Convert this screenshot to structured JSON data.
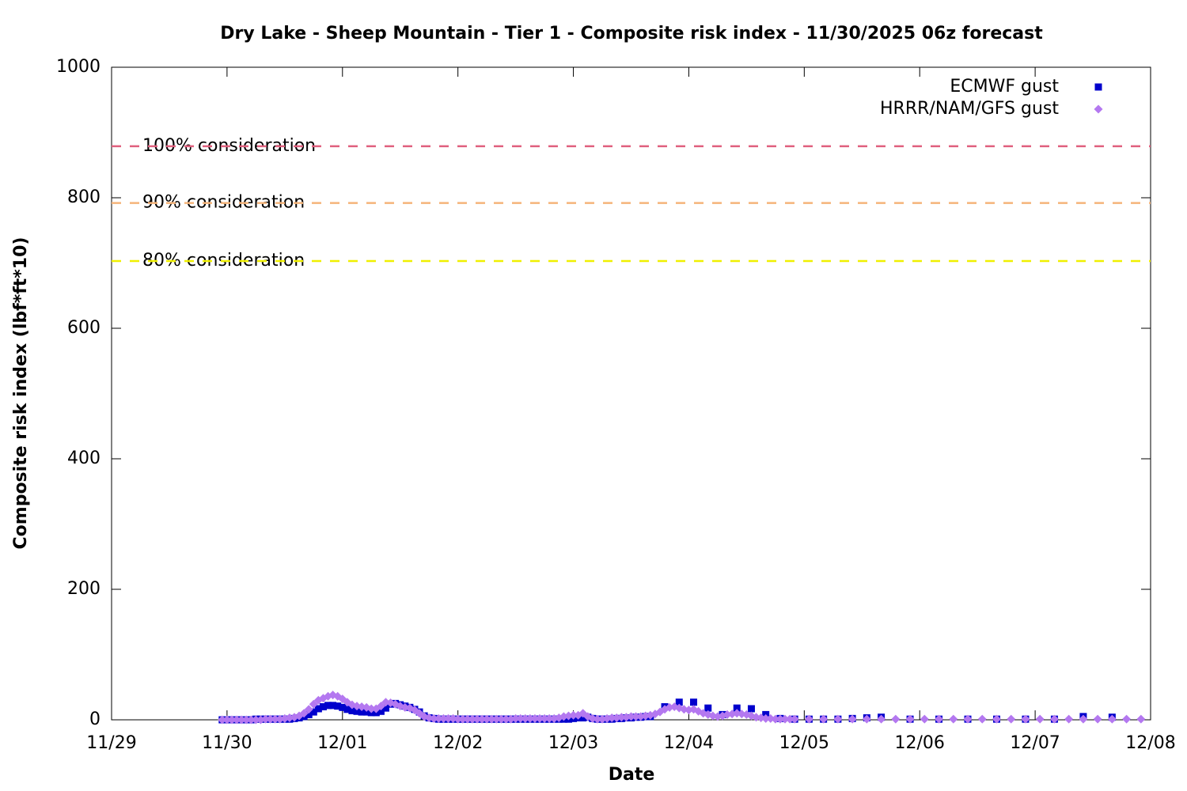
{
  "chart_data": {
    "type": "scatter",
    "title": "Dry Lake - Sheep Mountain - Tier 1 - Composite risk index - 11/30/2025 06z forecast",
    "xlabel": "Date",
    "ylabel": "Composite risk index (lbf*ft*10)",
    "xlim": [
      0,
      216
    ],
    "xticks": [
      {
        "value": 0,
        "label": "11/29"
      },
      {
        "value": 24,
        "label": "11/30"
      },
      {
        "value": 48,
        "label": "12/01"
      },
      {
        "value": 72,
        "label": "12/02"
      },
      {
        "value": 96,
        "label": "12/03"
      },
      {
        "value": 120,
        "label": "12/04"
      },
      {
        "value": 144,
        "label": "12/05"
      },
      {
        "value": 168,
        "label": "12/06"
      },
      {
        "value": 192,
        "label": "12/07"
      },
      {
        "value": 216,
        "label": "12/08"
      }
    ],
    "ylim": [
      0,
      1000
    ],
    "yticks": [
      0,
      200,
      400,
      600,
      800,
      1000
    ],
    "grid": false,
    "legend": "top-right",
    "thresholds": [
      {
        "label": "100% consideration",
        "value": 879,
        "color": "#e0607e"
      },
      {
        "label": "90% consideration",
        "value": 792,
        "color": "#f5b47a"
      },
      {
        "label": "80% consideration",
        "value": 703,
        "color": "#f0f000"
      }
    ],
    "series": [
      {
        "name": "ECMWF gust",
        "color": "#0000cc",
        "marker": "square",
        "x": [
          23,
          24,
          25,
          26,
          27,
          28,
          29,
          30,
          31,
          32,
          33,
          34,
          35,
          36,
          37,
          38,
          39,
          40,
          41,
          42,
          43,
          44,
          45,
          46,
          47,
          48,
          49,
          50,
          51,
          52,
          53,
          54,
          55,
          56,
          57,
          58,
          59,
          60,
          61,
          62,
          63,
          64,
          65,
          66,
          67,
          68,
          69,
          70,
          71,
          72,
          73,
          74,
          75,
          76,
          77,
          78,
          79,
          80,
          81,
          82,
          83,
          84,
          85,
          86,
          87,
          88,
          89,
          90,
          91,
          92,
          93,
          94,
          95,
          96,
          97,
          98,
          99,
          100,
          101,
          102,
          103,
          104,
          105,
          106,
          107,
          108,
          109,
          110,
          111,
          112,
          115,
          118,
          121,
          124,
          127,
          130,
          133,
          136,
          139,
          142,
          145,
          148,
          151,
          154,
          157,
          160,
          166,
          172,
          178,
          184,
          190,
          196,
          202,
          208
        ],
        "values": [
          0,
          0,
          0,
          0,
          0,
          0,
          0,
          1,
          1,
          1,
          1,
          1,
          1,
          1,
          1,
          2,
          3,
          5,
          8,
          12,
          17,
          20,
          22,
          22,
          21,
          19,
          16,
          14,
          13,
          12,
          12,
          11,
          11,
          13,
          18,
          24,
          25,
          23,
          21,
          19,
          16,
          12,
          6,
          3,
          2,
          1,
          1,
          1,
          1,
          1,
          1,
          1,
          1,
          1,
          1,
          1,
          1,
          1,
          1,
          1,
          1,
          1,
          1,
          1,
          1,
          1,
          1,
          1,
          1,
          1,
          1,
          1,
          1,
          2,
          3,
          3,
          4,
          2,
          1,
          1,
          1,
          1,
          2,
          2,
          3,
          3,
          4,
          4,
          5,
          5,
          20,
          27,
          27,
          18,
          8,
          18,
          17,
          8,
          2,
          1,
          1,
          1,
          1,
          2,
          3,
          4,
          1,
          1,
          1,
          1,
          1,
          1,
          5,
          4
        ]
      },
      {
        "name": "HRRR/NAM/GFS gust",
        "color": "#b478f0",
        "marker": "diamond",
        "x": [
          23,
          24,
          25,
          26,
          27,
          28,
          29,
          30,
          31,
          32,
          33,
          34,
          35,
          36,
          37,
          38,
          39,
          40,
          41,
          42,
          43,
          44,
          45,
          46,
          47,
          48,
          49,
          50,
          51,
          52,
          53,
          54,
          55,
          56,
          57,
          58,
          59,
          60,
          61,
          62,
          63,
          64,
          65,
          66,
          67,
          68,
          69,
          70,
          71,
          72,
          73,
          74,
          75,
          76,
          77,
          78,
          79,
          80,
          81,
          82,
          83,
          84,
          85,
          86,
          87,
          88,
          89,
          90,
          91,
          92,
          93,
          94,
          95,
          96,
          97,
          98,
          99,
          100,
          101,
          102,
          103,
          104,
          105,
          106,
          107,
          108,
          109,
          110,
          111,
          112,
          113,
          114,
          115,
          116,
          117,
          118,
          119,
          120,
          121,
          122,
          123,
          124,
          125,
          126,
          127,
          128,
          129,
          130,
          131,
          132,
          133,
          134,
          135,
          136,
          137,
          138,
          139,
          140,
          141,
          142,
          145,
          148,
          151,
          154,
          157,
          160,
          163,
          166,
          169,
          172,
          175,
          178,
          181,
          184,
          187,
          190,
          193,
          196,
          199,
          202,
          205,
          208,
          211,
          214
        ],
        "values": [
          0,
          0,
          0,
          0,
          0,
          0,
          0,
          0,
          0,
          1,
          1,
          1,
          1,
          2,
          3,
          4,
          6,
          10,
          16,
          24,
          30,
          33,
          36,
          38,
          36,
          32,
          27,
          23,
          21,
          20,
          19,
          17,
          17,
          21,
          27,
          26,
          24,
          21,
          19,
          18,
          15,
          10,
          5,
          3,
          2,
          2,
          2,
          2,
          2,
          1,
          1,
          1,
          1,
          1,
          1,
          1,
          1,
          1,
          1,
          1,
          1,
          2,
          2,
          2,
          2,
          2,
          2,
          2,
          2,
          2,
          3,
          5,
          6,
          7,
          7,
          10,
          5,
          2,
          1,
          1,
          2,
          3,
          3,
          4,
          4,
          5,
          5,
          5,
          6,
          7,
          9,
          12,
          16,
          19,
          20,
          18,
          16,
          15,
          16,
          13,
          10,
          8,
          6,
          5,
          6,
          8,
          9,
          10,
          9,
          8,
          6,
          4,
          3,
          2,
          2,
          1,
          1,
          1,
          1,
          1,
          1,
          1,
          1,
          1,
          1,
          1,
          1,
          1,
          1,
          1,
          1,
          1,
          1,
          1,
          1,
          1,
          1,
          1,
          1,
          1,
          1,
          1,
          1,
          1
        ]
      }
    ]
  }
}
